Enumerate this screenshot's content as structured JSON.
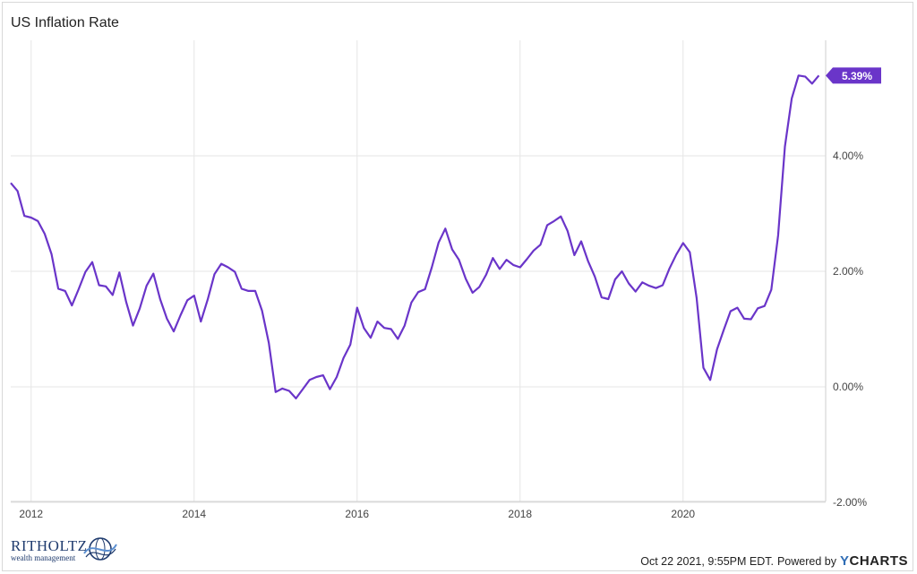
{
  "chart_data": {
    "type": "line",
    "title": "US Inflation Rate",
    "xlabel": "",
    "ylabel": "",
    "x_ticks": [
      "2012",
      "2014",
      "2016",
      "2018",
      "2020"
    ],
    "y_ticks": [
      "-2.00%",
      "0.00%",
      "2.00%",
      "4.00%"
    ],
    "ylim": [
      -2.0,
      5.8
    ],
    "xlim": [
      2011.75,
      2021.75
    ],
    "grid": true,
    "series": [
      {
        "color": "#6a35c9",
        "last_value_label": "5.39%",
        "x": [
          2011.75,
          2011.833,
          2011.917,
          2012.0,
          2012.083,
          2012.167,
          2012.25,
          2012.333,
          2012.417,
          2012.5,
          2012.583,
          2012.667,
          2012.75,
          2012.833,
          2012.917,
          2013.0,
          2013.083,
          2013.167,
          2013.25,
          2013.333,
          2013.417,
          2013.5,
          2013.583,
          2013.667,
          2013.75,
          2013.833,
          2013.917,
          2014.0,
          2014.083,
          2014.167,
          2014.25,
          2014.333,
          2014.417,
          2014.5,
          2014.583,
          2014.667,
          2014.75,
          2014.833,
          2014.917,
          2015.0,
          2015.083,
          2015.167,
          2015.25,
          2015.333,
          2015.417,
          2015.5,
          2015.583,
          2015.667,
          2015.75,
          2015.833,
          2015.917,
          2016.0,
          2016.083,
          2016.167,
          2016.25,
          2016.333,
          2016.417,
          2016.5,
          2016.583,
          2016.667,
          2016.75,
          2016.833,
          2016.917,
          2017.0,
          2017.083,
          2017.167,
          2017.25,
          2017.333,
          2017.417,
          2017.5,
          2017.583,
          2017.667,
          2017.75,
          2017.833,
          2017.917,
          2018.0,
          2018.083,
          2018.167,
          2018.25,
          2018.333,
          2018.417,
          2018.5,
          2018.583,
          2018.667,
          2018.75,
          2018.833,
          2018.917,
          2019.0,
          2019.083,
          2019.167,
          2019.25,
          2019.333,
          2019.417,
          2019.5,
          2019.583,
          2019.667,
          2019.75,
          2019.833,
          2019.917,
          2020.0,
          2020.083,
          2020.167,
          2020.25,
          2020.333,
          2020.417,
          2020.5,
          2020.583,
          2020.667,
          2020.75,
          2020.833,
          2020.917,
          2021.0,
          2021.083,
          2021.167,
          2021.25,
          2021.333,
          2021.417,
          2021.5,
          2021.583,
          2021.667
        ],
        "values": [
          3.53,
          3.39,
          2.96,
          2.93,
          2.87,
          2.65,
          2.3,
          1.7,
          1.66,
          1.41,
          1.69,
          1.99,
          2.16,
          1.76,
          1.74,
          1.59,
          1.98,
          1.47,
          1.06,
          1.36,
          1.75,
          1.96,
          1.52,
          1.18,
          0.96,
          1.24,
          1.5,
          1.58,
          1.13,
          1.51,
          1.95,
          2.13,
          2.07,
          1.99,
          1.7,
          1.66,
          1.66,
          1.32,
          0.76,
          -0.09,
          -0.03,
          -0.07,
          -0.2,
          -0.04,
          0.12,
          0.17,
          0.2,
          -0.04,
          0.17,
          0.5,
          0.73,
          1.37,
          1.02,
          0.85,
          1.13,
          1.02,
          1.0,
          0.83,
          1.06,
          1.46,
          1.64,
          1.69,
          2.07,
          2.5,
          2.74,
          2.38,
          2.2,
          1.87,
          1.63,
          1.73,
          1.94,
          2.23,
          2.04,
          2.2,
          2.11,
          2.07,
          2.21,
          2.36,
          2.46,
          2.8,
          2.87,
          2.95,
          2.7,
          2.28,
          2.52,
          2.18,
          1.91,
          1.55,
          1.52,
          1.86,
          2.0,
          1.79,
          1.65,
          1.81,
          1.75,
          1.71,
          1.76,
          2.05,
          2.29,
          2.49,
          2.33,
          1.54,
          0.33,
          0.12,
          0.65,
          0.99,
          1.31,
          1.37,
          1.18,
          1.17,
          1.36,
          1.4,
          1.68,
          2.62,
          4.16,
          4.99,
          5.39,
          5.37,
          5.25,
          5.39
        ]
      }
    ]
  },
  "footer": {
    "timestamp": "Oct 22 2021, 9:55PM EDT.",
    "powered_by": "Powered by",
    "brand_y": "Y",
    "brand_rest": "CHARTS",
    "logo_name": "RITHOLTZ",
    "logo_sub": "wealth management",
    "logo_icon": "globe-swirl-icon"
  }
}
